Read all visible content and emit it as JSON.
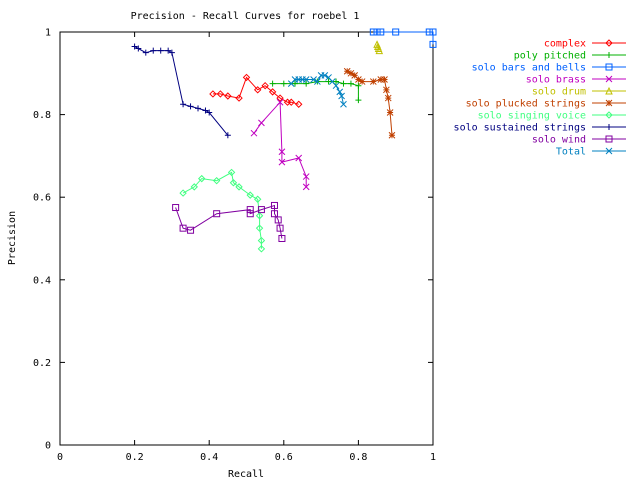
{
  "chart_data": {
    "type": "line",
    "title": "Precision - Recall Curves for roebel 1",
    "xlabel": "Recall",
    "ylabel": "Precision",
    "xlim": [
      0,
      1
    ],
    "ylim": [
      0,
      1
    ],
    "xticks": [
      "0",
      "0.2",
      "0.4",
      "0.6",
      "0.8",
      "1"
    ],
    "yticks": [
      "0",
      "0.2",
      "0.4",
      "0.6",
      "0.8",
      "1"
    ],
    "grid": false,
    "legend_position": "outside-right",
    "series": [
      {
        "name": "complex",
        "color": "#ff0000",
        "marker": "diamond",
        "x": [
          0.41,
          0.43,
          0.45,
          0.48,
          0.5,
          0.53,
          0.55,
          0.57,
          0.59,
          0.61,
          0.62,
          0.64
        ],
        "y": [
          0.85,
          0.85,
          0.845,
          0.84,
          0.89,
          0.86,
          0.87,
          0.855,
          0.84,
          0.83,
          0.83,
          0.825
        ]
      },
      {
        "name": "poly pitched",
        "color": "#00b000",
        "marker": "plus",
        "x": [
          0.57,
          0.6,
          0.63,
          0.66,
          0.69,
          0.72,
          0.74,
          0.76,
          0.78,
          0.8,
          0.8
        ],
        "y": [
          0.875,
          0.875,
          0.875,
          0.875,
          0.88,
          0.88,
          0.88,
          0.875,
          0.875,
          0.87,
          0.835
        ]
      },
      {
        "name": "solo bars and bells",
        "color": "#0060ff",
        "marker": "square",
        "x": [
          0.84,
          0.85,
          0.86,
          0.9,
          0.99,
          1.0,
          1.0
        ],
        "y": [
          1.0,
          1.0,
          1.0,
          1.0,
          1.0,
          1.0,
          0.97
        ]
      },
      {
        "name": "solo brass",
        "color": "#c000c0",
        "marker": "x",
        "x": [
          0.52,
          0.54,
          0.59,
          0.595,
          0.595,
          0.64,
          0.66,
          0.66
        ],
        "y": [
          0.755,
          0.78,
          0.83,
          0.71,
          0.685,
          0.695,
          0.65,
          0.625
        ]
      },
      {
        "name": "solo drum",
        "color": "#c0c000",
        "marker": "triangle",
        "x": [
          0.85,
          0.852,
          0.854,
          0.856
        ],
        "y": [
          0.97,
          0.965,
          0.96,
          0.955
        ]
      },
      {
        "name": "solo plucked strings",
        "color": "#c04000",
        "marker": "asterisk",
        "x": [
          0.77,
          0.78,
          0.79,
          0.8,
          0.81,
          0.84,
          0.86,
          0.87,
          0.875,
          0.88,
          0.885,
          0.89
        ],
        "y": [
          0.905,
          0.9,
          0.895,
          0.885,
          0.88,
          0.88,
          0.885,
          0.885,
          0.86,
          0.84,
          0.805,
          0.75
        ]
      },
      {
        "name": "solo singing voice",
        "color": "#40ff80",
        "marker": "diamond",
        "x": [
          0.33,
          0.36,
          0.38,
          0.42,
          0.46,
          0.465,
          0.48,
          0.51,
          0.53,
          0.535,
          0.535,
          0.54,
          0.54
        ],
        "y": [
          0.61,
          0.625,
          0.645,
          0.64,
          0.66,
          0.635,
          0.625,
          0.605,
          0.595,
          0.555,
          0.525,
          0.495,
          0.475
        ]
      },
      {
        "name": "solo sustained strings",
        "color": "#000080",
        "marker": "plus",
        "x": [
          0.2,
          0.21,
          0.23,
          0.25,
          0.27,
          0.29,
          0.3,
          0.33,
          0.35,
          0.37,
          0.39,
          0.4,
          0.45
        ],
        "y": [
          0.965,
          0.96,
          0.95,
          0.955,
          0.955,
          0.955,
          0.95,
          0.825,
          0.82,
          0.815,
          0.81,
          0.805,
          0.75
        ]
      },
      {
        "name": "solo wind",
        "color": "#8000a0",
        "marker": "square",
        "x": [
          0.31,
          0.33,
          0.35,
          0.42,
          0.51,
          0.51,
          0.54,
          0.575,
          0.575,
          0.585,
          0.59,
          0.595
        ],
        "y": [
          0.575,
          0.525,
          0.52,
          0.56,
          0.57,
          0.56,
          0.57,
          0.58,
          0.56,
          0.545,
          0.525,
          0.5
        ]
      },
      {
        "name": "Total",
        "color": "#0080c0",
        "marker": "x",
        "x": [
          0.62,
          0.63,
          0.64,
          0.65,
          0.66,
          0.68,
          0.69,
          0.7,
          0.71,
          0.72,
          0.73,
          0.74,
          0.75,
          0.755,
          0.76
        ],
        "y": [
          0.875,
          0.885,
          0.885,
          0.885,
          0.885,
          0.885,
          0.88,
          0.895,
          0.895,
          0.89,
          0.88,
          0.87,
          0.855,
          0.845,
          0.825
        ]
      }
    ]
  }
}
